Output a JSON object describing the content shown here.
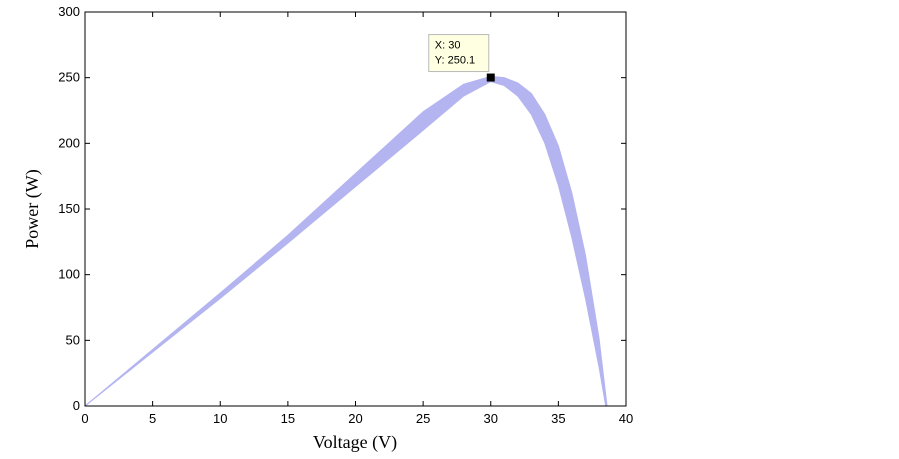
{
  "chart_data": {
    "type": "area",
    "xlabel": "Voltage (V)",
    "ylabel": "Power (W)",
    "xlim": [
      0,
      40
    ],
    "xticks": [
      0,
      5,
      10,
      15,
      20,
      25,
      30,
      35,
      40
    ],
    "ylim": [
      0,
      300
    ],
    "yticks": [
      0,
      50,
      100,
      150,
      200,
      250,
      300
    ],
    "grid": false,
    "series": [
      {
        "color": "#b4b4f0",
        "x": [
          0,
          5,
          10,
          15,
          20,
          25,
          28,
          30,
          31,
          32,
          33,
          34,
          35,
          36,
          37,
          38,
          38.6
        ],
        "values": [
          0,
          43,
          86,
          130,
          177,
          224,
          245,
          251,
          250,
          246,
          238,
          222,
          198,
          162,
          115,
          52,
          0
        ]
      },
      {
        "color": "#b4b4f0",
        "x": [
          0,
          5,
          10,
          15,
          20,
          25,
          28,
          30,
          31,
          32,
          33,
          34,
          35,
          36,
          37,
          38,
          38.5
        ],
        "values": [
          0,
          41,
          82,
          124,
          167,
          210,
          236,
          247,
          244,
          236,
          222,
          200,
          168,
          128,
          82,
          30,
          0
        ]
      }
    ],
    "datatip": {
      "x": 30,
      "y": 250.1,
      "label_x": "X: 30",
      "label_y": "Y: 250.1"
    }
  }
}
